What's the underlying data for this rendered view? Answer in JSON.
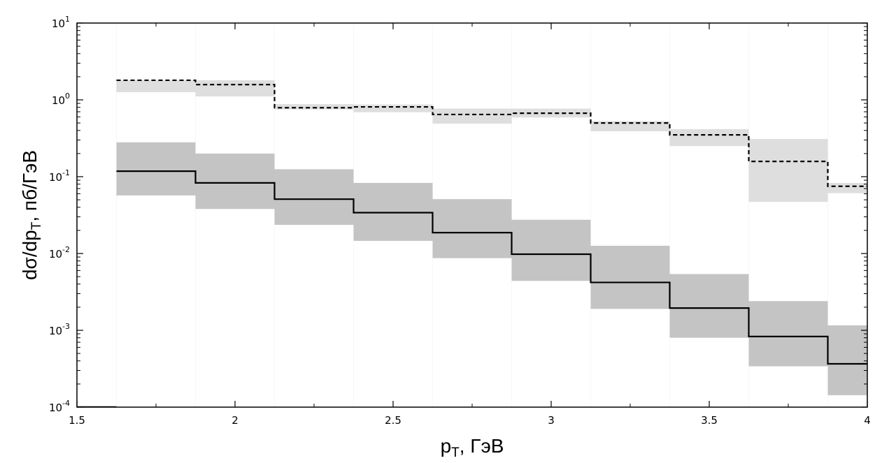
{
  "chart_data": {
    "type": "line",
    "style": "step histogram with uncertainty bands",
    "xlabel_main": "p",
    "xlabel_sub": "T",
    "xlabel_rest": ", ГэВ",
    "ylabel_main": "dσ/dp",
    "ylabel_sub": "T",
    "ylabel_rest": ", пб/ГэВ",
    "xlim": [
      1.5,
      4
    ],
    "ylim": [
      0.0001,
      10
    ],
    "yscale": "log",
    "grid": false,
    "x_ticks": [
      "1.5",
      "2",
      "2.5",
      "3",
      "3.5",
      "4"
    ],
    "y_ticks": [
      {
        "value": 0.0001,
        "mant": "10",
        "exp": "-4"
      },
      {
        "value": 0.001,
        "mant": "10",
        "exp": "-3"
      },
      {
        "value": 0.01,
        "mant": "10",
        "exp": "-2"
      },
      {
        "value": 0.1,
        "mant": "10",
        "exp": "-1"
      },
      {
        "value": 1,
        "mant": "10",
        "exp": "0"
      },
      {
        "value": 10,
        "mant": "10",
        "exp": "1"
      }
    ],
    "bin_edges": [
      1.625,
      1.875,
      2.125,
      2.375,
      2.625,
      2.875,
      3.125,
      3.375,
      3.625,
      3.875,
      4.0
    ],
    "series": [
      {
        "line": "dashed",
        "band_color": "#dedede",
        "values": [
          1.8,
          1.58,
          0.79,
          0.81,
          0.645,
          0.67,
          0.5,
          0.35,
          0.158,
          0.075
        ],
        "band_low": [
          1.26,
          1.11,
          0.75,
          0.69,
          0.49,
          0.59,
          0.39,
          0.25,
          0.047,
          0.061
        ],
        "band_high": [
          1.8,
          1.8,
          0.88,
          0.87,
          0.77,
          0.77,
          0.53,
          0.415,
          0.31,
          0.083
        ]
      },
      {
        "line": "solid",
        "band_color": "#c4c4c4",
        "values": [
          0.118,
          0.083,
          0.051,
          0.034,
          0.0187,
          0.0098,
          0.0042,
          0.00195,
          0.00083,
          0.000366
        ],
        "band_low": [
          0.057,
          0.038,
          0.0236,
          0.0146,
          0.0087,
          0.0044,
          0.0019,
          0.0008,
          0.00034,
          0.000143
        ],
        "band_high": [
          0.28,
          0.2,
          0.125,
          0.083,
          0.051,
          0.0275,
          0.0126,
          0.0054,
          0.0024,
          0.00116
        ]
      }
    ]
  }
}
